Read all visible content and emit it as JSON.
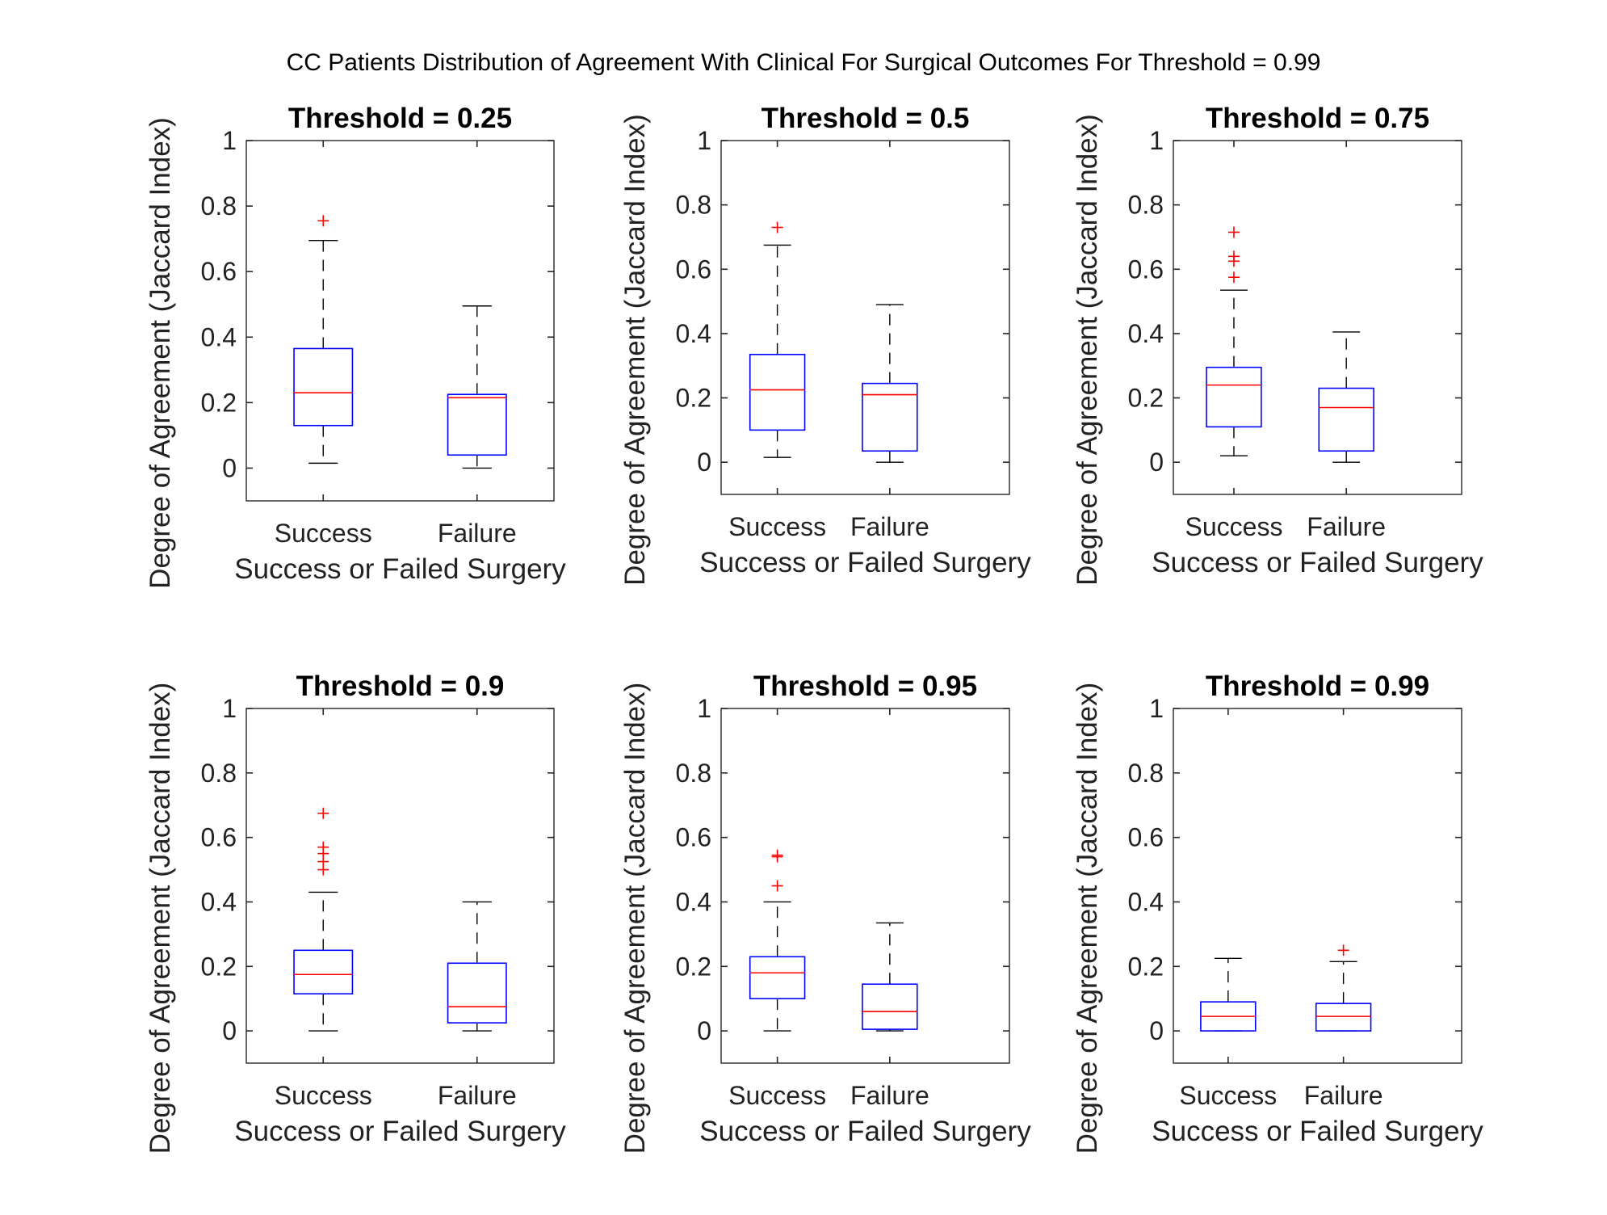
{
  "figure": {
    "suptitle": "CC Patients Distribution of Agreement With Clinical For Surgical Outcomes For Threshold = 0.99"
  },
  "colors": {
    "box": "#0000ff",
    "median": "#ff0000",
    "outlier": "#ff0000",
    "whisker": "#000000",
    "axis": "#262626"
  },
  "chart_data": [
    {
      "type": "box",
      "title": "Threshold = 0.25",
      "xlabel": "Success or Failed Surgery",
      "ylabel": "Degree of Agreement (Jaccard Index)",
      "ylim": [
        -0.1,
        1
      ],
      "yticks": [
        "0",
        "0.2",
        "0.4",
        "0.6",
        "0.8",
        "1"
      ],
      "categories": [
        "Success",
        "Failure"
      ],
      "boxes": [
        {
          "q1": 0.13,
          "median": 0.23,
          "q3": 0.365,
          "whisker_low": 0.015,
          "whisker_high": 0.695,
          "outliers": [
            0.755
          ]
        },
        {
          "q1": 0.04,
          "median": 0.215,
          "q3": 0.225,
          "whisker_low": 0.0,
          "whisker_high": 0.495,
          "outliers": []
        }
      ]
    },
    {
      "type": "box",
      "title": "Threshold = 0.5",
      "xlabel": "Success or Failed Surgery",
      "ylabel": "Degree of Agreement (Jaccard Index)",
      "ylim": [
        -0.1,
        1
      ],
      "yticks": [
        "0",
        "0.2",
        "0.4",
        "0.6",
        "0.8",
        "1"
      ],
      "categories": [
        "Success",
        "Failure"
      ],
      "boxes": [
        {
          "q1": 0.1,
          "median": 0.225,
          "q3": 0.335,
          "whisker_low": 0.015,
          "whisker_high": 0.675,
          "outliers": [
            0.73
          ]
        },
        {
          "q1": 0.035,
          "median": 0.21,
          "q3": 0.245,
          "whisker_low": 0.0,
          "whisker_high": 0.49,
          "outliers": []
        }
      ]
    },
    {
      "type": "box",
      "title": "Threshold = 0.75",
      "xlabel": "Success or Failed Surgery",
      "ylabel": "Degree of Agreement (Jaccard Index)",
      "ylim": [
        -0.1,
        1
      ],
      "yticks": [
        "0",
        "0.2",
        "0.4",
        "0.6",
        "0.8",
        "1"
      ],
      "categories": [
        "Success",
        "Failure"
      ],
      "boxes": [
        {
          "q1": 0.11,
          "median": 0.24,
          "q3": 0.295,
          "whisker_low": 0.02,
          "whisker_high": 0.535,
          "outliers": [
            0.575,
            0.625,
            0.64,
            0.715
          ]
        },
        {
          "q1": 0.035,
          "median": 0.17,
          "q3": 0.23,
          "whisker_low": 0.0,
          "whisker_high": 0.405,
          "outliers": []
        }
      ]
    },
    {
      "type": "box",
      "title": "Threshold = 0.9",
      "xlabel": "Success or Failed Surgery",
      "ylabel": "Degree of Agreement (Jaccard Index)",
      "ylim": [
        -0.1,
        1
      ],
      "yticks": [
        "0",
        "0.2",
        "0.4",
        "0.6",
        "0.8",
        "1"
      ],
      "categories": [
        "Success",
        "Failure"
      ],
      "boxes": [
        {
          "q1": 0.115,
          "median": 0.175,
          "q3": 0.25,
          "whisker_low": 0.0,
          "whisker_high": 0.43,
          "outliers": [
            0.5,
            0.525,
            0.55,
            0.57,
            0.675
          ]
        },
        {
          "q1": 0.025,
          "median": 0.075,
          "q3": 0.21,
          "whisker_low": 0.0,
          "whisker_high": 0.4,
          "outliers": []
        }
      ]
    },
    {
      "type": "box",
      "title": "Threshold = 0.95",
      "xlabel": "Success or Failed Surgery",
      "ylabel": "Degree of Agreement (Jaccard Index)",
      "ylim": [
        -0.1,
        1
      ],
      "yticks": [
        "0",
        "0.2",
        "0.4",
        "0.6",
        "0.8",
        "1"
      ],
      "categories": [
        "Success",
        "Failure"
      ],
      "boxes": [
        {
          "q1": 0.1,
          "median": 0.18,
          "q3": 0.23,
          "whisker_low": 0.0,
          "whisker_high": 0.4,
          "outliers": [
            0.45,
            0.54,
            0.545
          ]
        },
        {
          "q1": 0.005,
          "median": 0.06,
          "q3": 0.145,
          "whisker_low": 0.0,
          "whisker_high": 0.335,
          "outliers": []
        }
      ]
    },
    {
      "type": "box",
      "title": "Threshold = 0.99",
      "xlabel": "Success or Failed Surgery",
      "ylabel": "Degree of Agreement (Jaccard Index)",
      "ylim": [
        -0.1,
        1
      ],
      "yticks": [
        "0",
        "0.2",
        "0.4",
        "0.6",
        "0.8",
        "1"
      ],
      "categories": [
        "Success",
        "Failure"
      ],
      "boxes": [
        {
          "q1": 0.0,
          "median": 0.045,
          "q3": 0.09,
          "whisker_low": 0.0,
          "whisker_high": 0.225,
          "outliers": []
        },
        {
          "q1": 0.0,
          "median": 0.045,
          "q3": 0.085,
          "whisker_low": 0.0,
          "whisker_high": 0.215,
          "outliers": [
            0.25
          ]
        }
      ]
    }
  ]
}
